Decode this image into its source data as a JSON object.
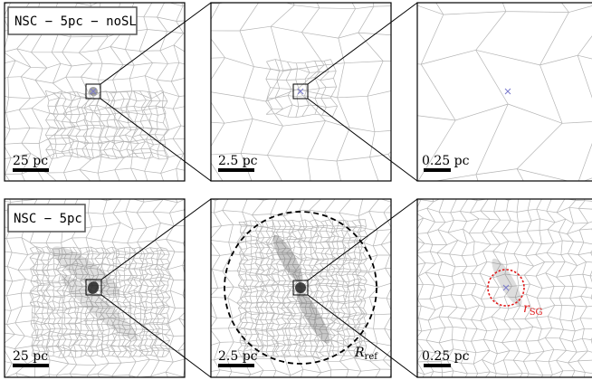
{
  "rows": [
    {
      "label": "NSC − 5pc − noSL",
      "panels": [
        {
          "scale_label": "25 pc",
          "mesh": "sparse-coarse"
        },
        {
          "scale_label": "2.5 pc",
          "mesh": "sparse-medium"
        },
        {
          "scale_label": "0.25 pc",
          "mesh": "very-sparse"
        }
      ]
    },
    {
      "label": "NSC − 5pc",
      "panels": [
        {
          "scale_label": "25 pc",
          "mesh": "dense-spiral"
        },
        {
          "scale_label": "2.5 pc",
          "mesh": "dense-spiral",
          "annotation": "R",
          "annotation_sub": "ref"
        },
        {
          "scale_label": "0.25 pc",
          "mesh": "dense",
          "annotation": "r",
          "annotation_sub": "SG"
        }
      ]
    }
  ],
  "colors": {
    "frame": "#000000",
    "mesh": "#b5b5b5",
    "gas": "#555555",
    "marker": "#7a7acc",
    "sg_circle": "#e01b1b",
    "ref_circle": "#000000"
  },
  "icons": [
    "cross-marker-icon"
  ]
}
